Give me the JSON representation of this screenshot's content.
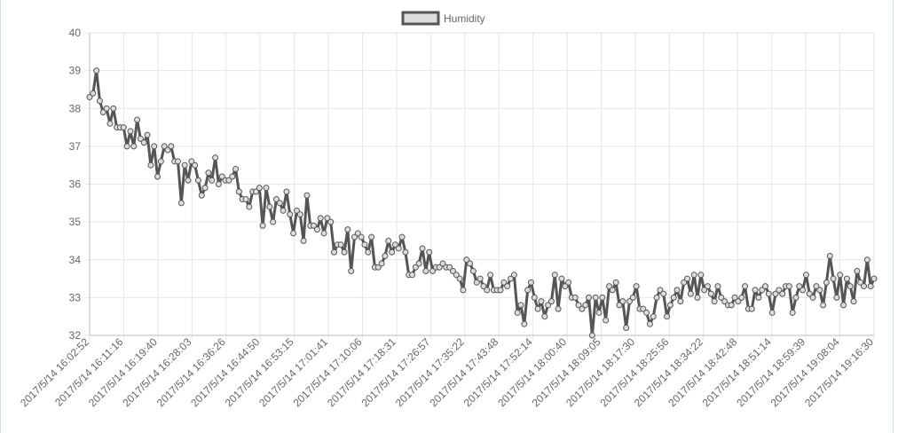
{
  "colors": {
    "line": "#555555",
    "point_fill": "#dcdcdc",
    "grid": "#e6e6e6",
    "axis": "#bbbbbb",
    "legend_fill": "#dcdcdc",
    "legend_border": "#555555"
  },
  "legend": {
    "label": "Humidity"
  },
  "chart_data": {
    "type": "line",
    "legend_position": "top-center",
    "grid": true,
    "ylim": [
      32,
      40
    ],
    "yticks": [
      40,
      39,
      38,
      37,
      36,
      35,
      34,
      33,
      32
    ],
    "x_tick_labels": [
      "2017/5/14 16:02:52",
      "2017/5/14 16:11:16",
      "2017/5/14 16:19:40",
      "2017/5/14 16:28:03",
      "2017/5/14 16:36:26",
      "2017/5/14 16:44:50",
      "2017/5/14 16:53:15",
      "2017/5/14 17:01:41",
      "2017/5/14 17:10:06",
      "2017/5/14 17:18:31",
      "2017/5/14 17:26:57",
      "2017/5/14 17:35:22",
      "2017/5/14 17:43:48",
      "2017/5/14 17:52:14",
      "2017/5/14 18:00:40",
      "2017/5/14 18:09:05",
      "2017/5/14 18:17:30",
      "2017/5/14 18:25:56",
      "2017/5/14 18:34:22",
      "2017/5/14 18:42:48",
      "2017/5/14 18:51:14",
      "2017/5/14 18:59:39",
      "2017/5/14 19:08:04",
      "2017/5/14 19:16:30"
    ],
    "series": [
      {
        "name": "Humidity",
        "values": [
          38.3,
          38.4,
          39.0,
          38.2,
          37.9,
          38.0,
          37.6,
          38.0,
          37.5,
          37.5,
          37.5,
          37.0,
          37.4,
          37.0,
          37.7,
          37.2,
          37.1,
          37.3,
          36.5,
          37.0,
          36.2,
          36.6,
          37.0,
          36.9,
          37.0,
          36.6,
          36.6,
          35.5,
          36.5,
          36.1,
          36.6,
          36.5,
          36.1,
          35.7,
          35.9,
          36.3,
          36.1,
          36.7,
          36.0,
          36.2,
          36.1,
          36.1,
          36.2,
          36.4,
          35.8,
          35.6,
          35.6,
          35.4,
          35.8,
          35.8,
          35.9,
          34.9,
          35.9,
          35.4,
          35.0,
          35.6,
          35.5,
          35.3,
          35.8,
          35.2,
          34.7,
          35.3,
          35.2,
          34.5,
          35.7,
          34.9,
          34.9,
          34.8,
          35.1,
          34.7,
          35.1,
          35.0,
          34.2,
          34.4,
          34.4,
          34.2,
          34.8,
          33.7,
          34.6,
          34.7,
          34.6,
          34.4,
          34.2,
          34.6,
          33.8,
          33.8,
          33.9,
          34.1,
          34.5,
          34.2,
          34.4,
          34.3,
          34.6,
          34.2,
          33.6,
          33.6,
          33.8,
          33.9,
          34.3,
          33.7,
          34.2,
          33.7,
          33.8,
          33.8,
          33.9,
          33.8,
          33.8,
          33.7,
          33.6,
          33.5,
          33.2,
          34.0,
          33.9,
          33.7,
          33.4,
          33.5,
          33.3,
          33.2,
          33.6,
          33.2,
          33.2,
          33.2,
          33.4,
          33.3,
          33.5,
          33.6,
          32.6,
          32.8,
          32.3,
          33.2,
          33.4,
          33.0,
          32.7,
          32.9,
          32.5,
          32.8,
          32.9,
          33.6,
          32.7,
          33.5,
          33.3,
          33.4,
          33.0,
          33.0,
          32.8,
          32.7,
          32.8,
          33.0,
          32.0,
          33.0,
          32.6,
          33.0,
          32.4,
          33.3,
          33.2,
          33.4,
          32.8,
          32.9,
          32.2,
          32.9,
          33.0,
          33.3,
          32.7,
          32.7,
          32.6,
          32.3,
          32.5,
          33.0,
          33.2,
          33.1,
          32.5,
          32.8,
          33.0,
          33.2,
          32.9,
          33.4,
          33.5,
          33.1,
          33.6,
          33.0,
          33.6,
          33.2,
          33.3,
          33.1,
          32.9,
          33.3,
          33.0,
          32.9,
          32.8,
          32.8,
          33.0,
          32.9,
          33.0,
          33.3,
          32.7,
          32.7,
          33.2,
          33.0,
          33.2,
          33.3,
          33.1,
          32.6,
          33.1,
          33.2,
          33.1,
          33.3,
          33.3,
          32.6,
          33.0,
          33.3,
          33.2,
          33.6,
          33.1,
          33.0,
          33.3,
          33.2,
          32.8,
          33.4,
          34.1,
          33.5,
          33.0,
          33.6,
          32.8,
          33.5,
          33.3,
          32.9,
          33.7,
          33.4,
          33.3,
          34.0,
          33.3,
          33.5
        ]
      }
    ]
  }
}
